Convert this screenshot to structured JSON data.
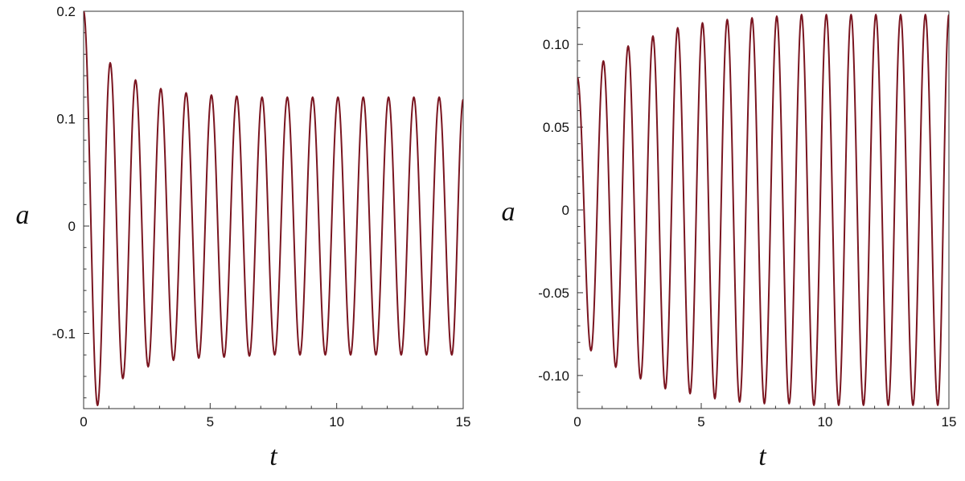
{
  "chart_data": [
    {
      "type": "line",
      "title": "",
      "xlabel": "t",
      "ylabel": "a",
      "xlim": [
        0,
        15
      ],
      "ylim": [
        -0.17,
        0.2
      ],
      "xticks": [
        0,
        5,
        10,
        15
      ],
      "xtick_labels": [
        "0",
        "5",
        "10",
        "15"
      ],
      "yticks": [
        0.2,
        0.1,
        0,
        -0.1
      ],
      "ytick_labels": [
        "0.2",
        "0.1",
        "0",
        "-0.1"
      ],
      "series": [
        {
          "color": "#7a1520",
          "x": [
            0,
            0.55,
            1.05,
            1.55,
            2.05,
            2.55,
            3.05,
            3.55,
            4.05,
            4.55,
            5.05,
            5.55,
            6.05,
            6.55,
            7.05,
            7.55,
            8.05,
            8.55,
            9.05,
            9.55,
            10.05,
            10.55,
            11.05,
            11.55,
            12.05,
            12.55,
            13.05,
            13.55,
            14.05,
            14.55,
            15
          ],
          "y": [
            0.2,
            -0.167,
            0.152,
            -0.142,
            0.136,
            -0.131,
            0.128,
            -0.125,
            0.124,
            -0.123,
            0.122,
            -0.122,
            0.121,
            -0.121,
            0.12,
            -0.12,
            0.12,
            -0.12,
            0.12,
            -0.12,
            0.12,
            -0.12,
            0.12,
            -0.12,
            0.12,
            -0.12,
            0.12,
            -0.12,
            0.12,
            -0.12,
            0.118
          ]
        }
      ]
    },
    {
      "type": "line",
      "title": "",
      "xlabel": "t",
      "ylabel": "a",
      "xlim": [
        0,
        15
      ],
      "ylim": [
        -0.12,
        0.12
      ],
      "xticks": [
        0,
        5,
        10,
        15
      ],
      "xtick_labels": [
        "0",
        "5",
        "10",
        "15"
      ],
      "yticks": [
        0.1,
        0.05,
        0,
        -0.05,
        -0.1
      ],
      "ytick_labels": [
        "0.10",
        "0.05",
        "0",
        "-0.05",
        "-0.10"
      ],
      "series": [
        {
          "color": "#7a1520",
          "x": [
            0,
            0.55,
            1.05,
            1.55,
            2.05,
            2.55,
            3.05,
            3.55,
            4.05,
            4.55,
            5.05,
            5.55,
            6.05,
            6.55,
            7.05,
            7.55,
            8.05,
            8.55,
            9.05,
            9.55,
            10.05,
            10.55,
            11.05,
            11.55,
            12.05,
            12.55,
            13.05,
            13.55,
            14.05,
            14.55,
            15
          ],
          "y": [
            0.08,
            -0.085,
            0.09,
            -0.095,
            0.099,
            -0.102,
            0.105,
            -0.108,
            0.11,
            -0.111,
            0.113,
            -0.114,
            0.115,
            -0.116,
            0.116,
            -0.117,
            0.117,
            -0.117,
            0.118,
            -0.118,
            0.118,
            -0.118,
            0.118,
            -0.118,
            0.118,
            -0.118,
            0.118,
            -0.118,
            0.118,
            -0.118,
            0.118
          ]
        }
      ]
    }
  ]
}
